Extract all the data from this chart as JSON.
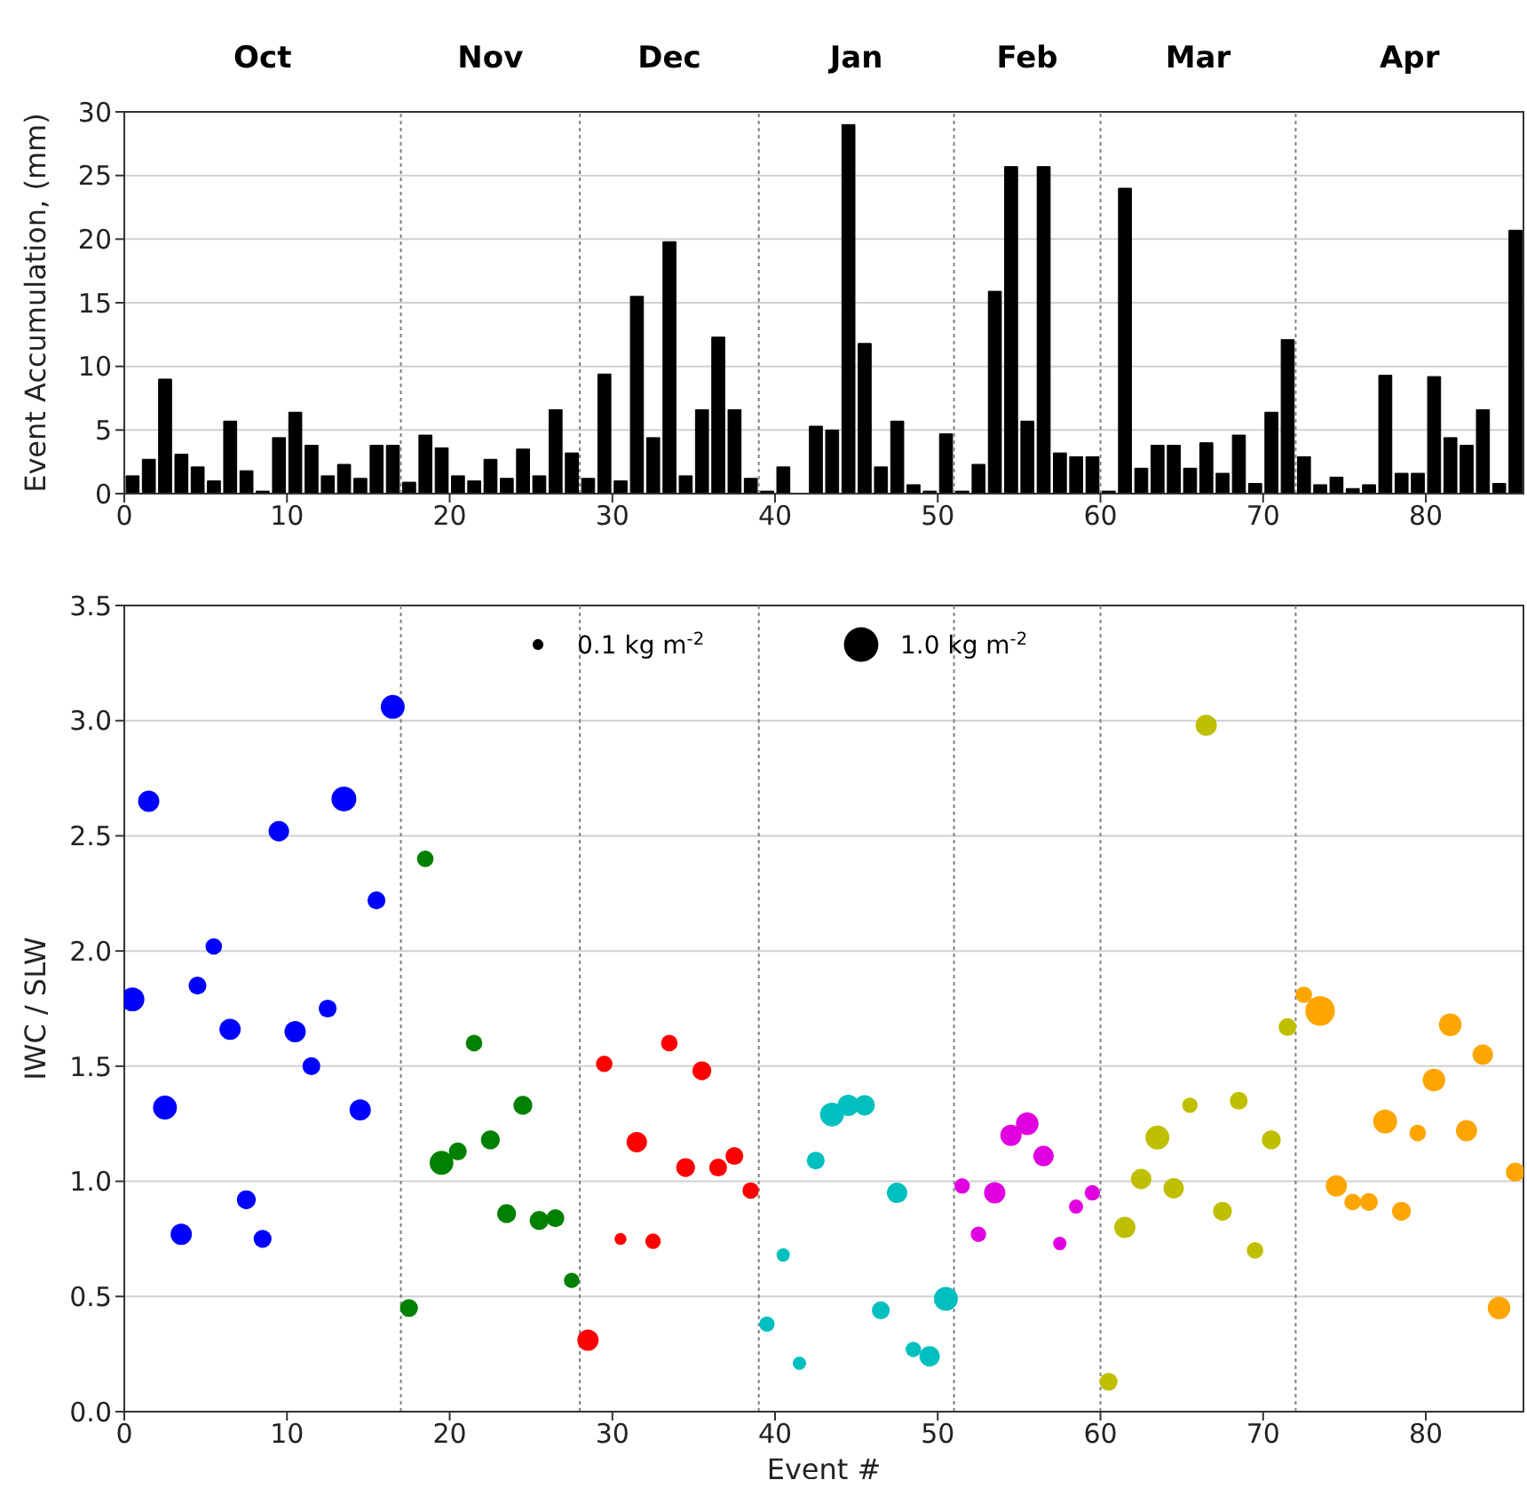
{
  "chart_data": [
    {
      "type": "bar",
      "ylabel": "Event Accumulation, (mm)",
      "color": "#000000",
      "x": [
        0.5,
        1.5,
        2.5,
        3.5,
        4.5,
        5.5,
        6.5,
        7.5,
        8.5,
        9.5,
        10.5,
        11.5,
        12.5,
        13.5,
        14.5,
        15.5,
        16.5,
        17.5,
        18.5,
        19.5,
        20.5,
        21.5,
        22.5,
        23.5,
        24.5,
        25.5,
        26.5,
        27.5,
        28.5,
        29.5,
        30.5,
        31.5,
        32.5,
        33.5,
        34.5,
        35.5,
        36.5,
        37.5,
        38.5,
        39.5,
        40.5,
        41.5,
        42.5,
        43.5,
        44.5,
        45.5,
        46.5,
        47.5,
        48.5,
        49.5,
        50.5,
        51.5,
        52.5,
        53.5,
        54.5,
        55.5,
        56.5,
        57.5,
        58.5,
        59.5,
        60.5,
        61.5,
        62.5,
        63.5,
        64.5,
        65.5,
        66.5,
        67.5,
        68.5,
        69.5,
        70.5,
        71.5,
        72.5,
        73.5,
        74.5,
        75.5,
        76.5,
        77.5,
        78.5,
        79.5,
        80.5,
        81.5,
        82.5,
        83.5,
        84.5,
        85.5
      ],
      "values": [
        1.4,
        2.7,
        9.0,
        3.1,
        2.1,
        1.0,
        5.7,
        1.8,
        0.2,
        4.4,
        6.4,
        3.8,
        1.4,
        2.3,
        1.2,
        3.8,
        3.8,
        0.9,
        4.6,
        3.6,
        1.4,
        1.0,
        2.7,
        1.2,
        3.5,
        1.4,
        6.6,
        3.2,
        1.2,
        9.4,
        1.0,
        15.5,
        4.4,
        19.8,
        1.4,
        6.6,
        12.3,
        6.6,
        1.2,
        0.2,
        2.1,
        0,
        5.3,
        5.0,
        29.0,
        11.8,
        2.1,
        5.7,
        0.7,
        0.2,
        4.7,
        0.2,
        2.3,
        15.9,
        25.7,
        5.7,
        25.7,
        3.2,
        2.9,
        2.9,
        0.2,
        24.0,
        2.0,
        3.8,
        3.8,
        2.0,
        4.0,
        1.6,
        4.6,
        0.8,
        6.4,
        12.1,
        2.9,
        0.7,
        1.3,
        0.4,
        0.7,
        9.3,
        1.6,
        1.6,
        9.2,
        4.4,
        3.8,
        6.6,
        0.8,
        20.7
      ],
      "xlim": [
        0,
        86
      ],
      "xticks": [
        0,
        10,
        20,
        30,
        40,
        50,
        60,
        70,
        80
      ],
      "ylim": [
        0,
        30
      ],
      "yticks": [
        0,
        5,
        10,
        15,
        20,
        25,
        30
      ],
      "grid": "y",
      "ref_lines": [
        {
          "axis": "x",
          "value": 17,
          "color": "#808080",
          "line_style": "dotted"
        },
        {
          "axis": "x",
          "value": 28,
          "color": "#808080",
          "line_style": "dotted"
        },
        {
          "axis": "x",
          "value": 39,
          "color": "#808080",
          "line_style": "dotted"
        },
        {
          "axis": "x",
          "value": 51,
          "color": "#808080",
          "line_style": "dotted"
        },
        {
          "axis": "x",
          "value": 60,
          "color": "#808080",
          "line_style": "dotted"
        },
        {
          "axis": "x",
          "value": 72,
          "color": "#808080",
          "line_style": "dotted"
        }
      ],
      "annotations": [
        "Oct",
        "Nov",
        "Dec",
        "Jan",
        "Feb",
        "Mar",
        "Apr"
      ]
    },
    {
      "type": "bubble",
      "xlabel": "Event #",
      "ylabel": "IWC / SLW",
      "size_legend": [
        {
          "value": 0.1,
          "label": "0.1 kg m$^{-2}$"
        },
        {
          "value": 1.0,
          "label": "1.0 kg m$^{-2}$"
        }
      ],
      "series": [
        {
          "color": "#0000ff",
          "x": [
            0.5,
            1.5,
            2.5,
            3.5,
            4.5,
            5.5,
            6.5,
            7.5,
            8.5,
            9.5,
            10.5,
            11.5,
            12.5,
            13.5,
            14.5,
            15.5,
            16.5
          ],
          "values": [
            1.79,
            2.65,
            1.32,
            0.77,
            1.85,
            2.02,
            1.66,
            0.92,
            0.75,
            2.52,
            1.65,
            1.5,
            1.75,
            2.66,
            1.31,
            2.22,
            3.06
          ],
          "sizes": [
            0.48,
            0.38,
            0.48,
            0.38,
            0.27,
            0.23,
            0.38,
            0.3,
            0.27,
            0.35,
            0.38,
            0.27,
            0.27,
            0.52,
            0.38,
            0.27,
            0.48
          ]
        },
        {
          "color": "#008000",
          "x": [
            17.5,
            18.5,
            19.5,
            20.5,
            21.5,
            22.5,
            23.5,
            24.5,
            25.5,
            26.5,
            27.5
          ],
          "values": [
            0.45,
            2.4,
            1.08,
            1.13,
            1.6,
            1.18,
            0.86,
            1.33,
            0.83,
            0.84,
            0.57
          ],
          "sizes": [
            0.27,
            0.23,
            0.48,
            0.27,
            0.23,
            0.3,
            0.3,
            0.3,
            0.3,
            0.27,
            0.2
          ]
        },
        {
          "color": "#ff0000",
          "x": [
            28.5,
            29.5,
            30.5,
            31.5,
            32.5,
            33.5,
            34.5,
            35.5,
            36.5,
            37.5,
            38.5
          ],
          "values": [
            0.31,
            1.51,
            0.75,
            1.17,
            0.74,
            1.6,
            1.06,
            1.48,
            1.06,
            1.11,
            0.96
          ],
          "sizes": [
            0.38,
            0.23,
            0.12,
            0.35,
            0.2,
            0.23,
            0.3,
            0.3,
            0.27,
            0.27,
            0.23
          ]
        },
        {
          "color": "#00bfbf",
          "x": [
            39.5,
            40.5,
            41.5,
            42.5,
            43.5,
            44.5,
            45.5,
            46.5,
            47.5,
            48.5,
            49.5,
            50.5
          ],
          "values": [
            0.38,
            0.68,
            0.21,
            1.09,
            1.29,
            1.33,
            1.33,
            0.44,
            0.95,
            0.27,
            0.24,
            0.49
          ],
          "sizes": [
            0.2,
            0.15,
            0.15,
            0.27,
            0.48,
            0.38,
            0.35,
            0.27,
            0.35,
            0.2,
            0.35,
            0.48
          ]
        },
        {
          "color": "#e000e0",
          "x": [
            51.5,
            52.5,
            53.5,
            54.5,
            55.5,
            56.5,
            57.5,
            58.5,
            59.5
          ],
          "values": [
            0.98,
            0.77,
            0.95,
            1.2,
            1.25,
            1.11,
            0.73,
            0.89,
            0.95
          ],
          "sizes": [
            0.2,
            0.2,
            0.38,
            0.38,
            0.43,
            0.35,
            0.15,
            0.17,
            0.2
          ]
        },
        {
          "color": "#bfbf00",
          "x": [
            60.5,
            61.5,
            62.5,
            63.5,
            64.5,
            65.5,
            66.5,
            67.5,
            68.5,
            69.5,
            70.5,
            71.5
          ],
          "values": [
            0.13,
            0.8,
            1.01,
            1.19,
            0.97,
            1.33,
            2.98,
            0.87,
            1.35,
            0.7,
            1.18,
            1.67
          ],
          "sizes": [
            0.27,
            0.38,
            0.35,
            0.48,
            0.35,
            0.2,
            0.38,
            0.3,
            0.27,
            0.23,
            0.3,
            0.27
          ]
        },
        {
          "color": "#ffa500",
          "x": [
            72.5,
            73.5,
            74.5,
            75.5,
            76.5,
            77.5,
            78.5,
            79.5,
            80.5,
            81.5,
            82.5,
            83.5,
            84.5,
            85.5
          ],
          "values": [
            1.81,
            1.74,
            0.98,
            0.91,
            0.91,
            1.26,
            0.87,
            1.21,
            1.44,
            1.68,
            1.22,
            1.55,
            0.45,
            1.04
          ],
          "sizes": [
            0.23,
            0.74,
            0.38,
            0.23,
            0.27,
            0.48,
            0.3,
            0.23,
            0.43,
            0.43,
            0.38,
            0.35,
            0.43,
            0.3
          ]
        }
      ],
      "xlim": [
        0,
        86
      ],
      "xticks": [
        0,
        10,
        20,
        30,
        40,
        50,
        60,
        70,
        80
      ],
      "ylim": [
        0,
        3.5
      ],
      "yticks": [
        {
          "value": 0,
          "label": "0.0"
        },
        {
          "value": 0.5,
          "label": "0.5"
        },
        {
          "value": 1,
          "label": "1.0"
        },
        {
          "value": 1.5,
          "label": "1.5"
        },
        {
          "value": 2,
          "label": "2.0"
        },
        {
          "value": 2.5,
          "label": "2.5"
        },
        {
          "value": 3,
          "label": "3.0"
        },
        {
          "value": 3.5,
          "label": "3.5"
        }
      ],
      "grid": "y",
      "ref_lines": [
        {
          "axis": "x",
          "value": 17,
          "color": "#808080",
          "line_style": "dotted"
        },
        {
          "axis": "x",
          "value": 28,
          "color": "#808080",
          "line_style": "dotted"
        },
        {
          "axis": "x",
          "value": 39,
          "color": "#808080",
          "line_style": "dotted"
        },
        {
          "axis": "x",
          "value": 51,
          "color": "#808080",
          "line_style": "dotted"
        },
        {
          "axis": "x",
          "value": 60,
          "color": "#808080",
          "line_style": "dotted"
        },
        {
          "axis": "x",
          "value": 72,
          "color": "#808080",
          "line_style": "dotted"
        }
      ]
    }
  ]
}
